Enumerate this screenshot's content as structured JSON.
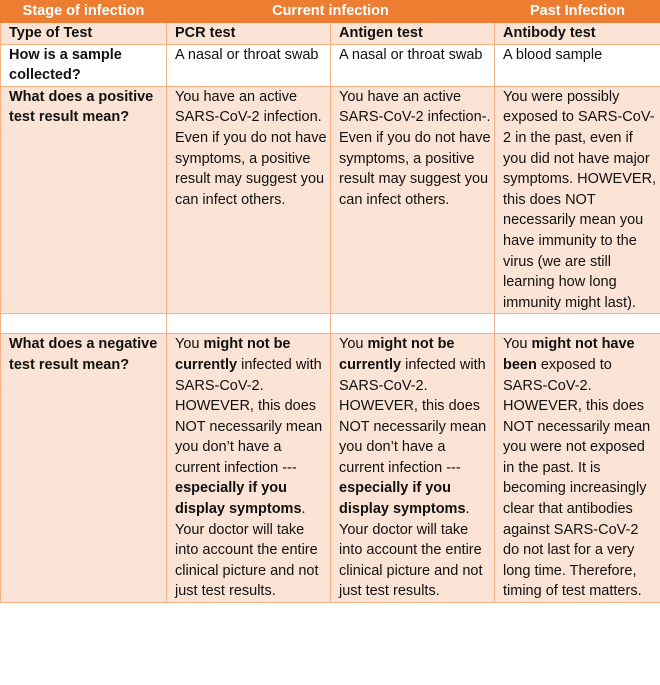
{
  "header": {
    "stage": "Stage of infection",
    "current": "Current infection",
    "past": "Past Infection"
  },
  "type_row": {
    "label": "Type of Test",
    "pcr": "PCR test",
    "antigen": "Antigen test",
    "antibody": "Antibody test"
  },
  "sample_row": {
    "label": "How is a sample collected?",
    "pcr": "A nasal or throat swab",
    "antigen": "A nasal or throat swab",
    "antibody": "A blood sample"
  },
  "positive_row": {
    "label": "What does a positive test result mean?",
    "pcr": "You have an active SARS-CoV-2 infection. Even if you do not have symptoms, a positive result may suggest you can infect others.",
    "antigen": "You have an active SARS-CoV-2 infection-. Even if you do not have symptoms, a positive result may suggest you can infect others.",
    "antibody": "You were possibly exposed to SARS-CoV-2 in the past, even if you did not have major symptoms. HOWEVER, this does NOT necessarily mean you have immunity to the virus (we are still learning how long immunity might last)."
  },
  "negative_row": {
    "label": "What does a negative test result mean?",
    "pcr": {
      "p1": "You ",
      "b1": "might not be currently",
      "p2": " infected with SARS-CoV-2. HOWEVER, this does NOT necessarily mean you don’t have a current infection --- ",
      "b2": "especially if you display symptoms",
      "p3": ". Your doctor will take into account the entire clinical picture and not just test results."
    },
    "antigen": {
      "p1": "You ",
      "b1": "might not be currently",
      "p2": " infected with SARS-CoV-2. HOWEVER, this does NOT necessarily mean you don’t have a current infection --- ",
      "b2": "especially if you display symptoms",
      "p3": ". Your doctor will take into account the entire clinical picture and not just test results."
    },
    "antibody": {
      "p1": "You ",
      "b1": "might not have been",
      "p2": " exposed to SARS-CoV-2. HOWEVER, this does NOT necessarily mean you were not exposed in the past. It is becoming increasingly clear that antibodies against SARS-CoV-2 do not last for a very long time. Therefore, timing of test matters."
    }
  },
  "colors": {
    "header_bg": "#ed7d31",
    "row_bg": "#fbe4d5",
    "border": "#f4b183"
  }
}
